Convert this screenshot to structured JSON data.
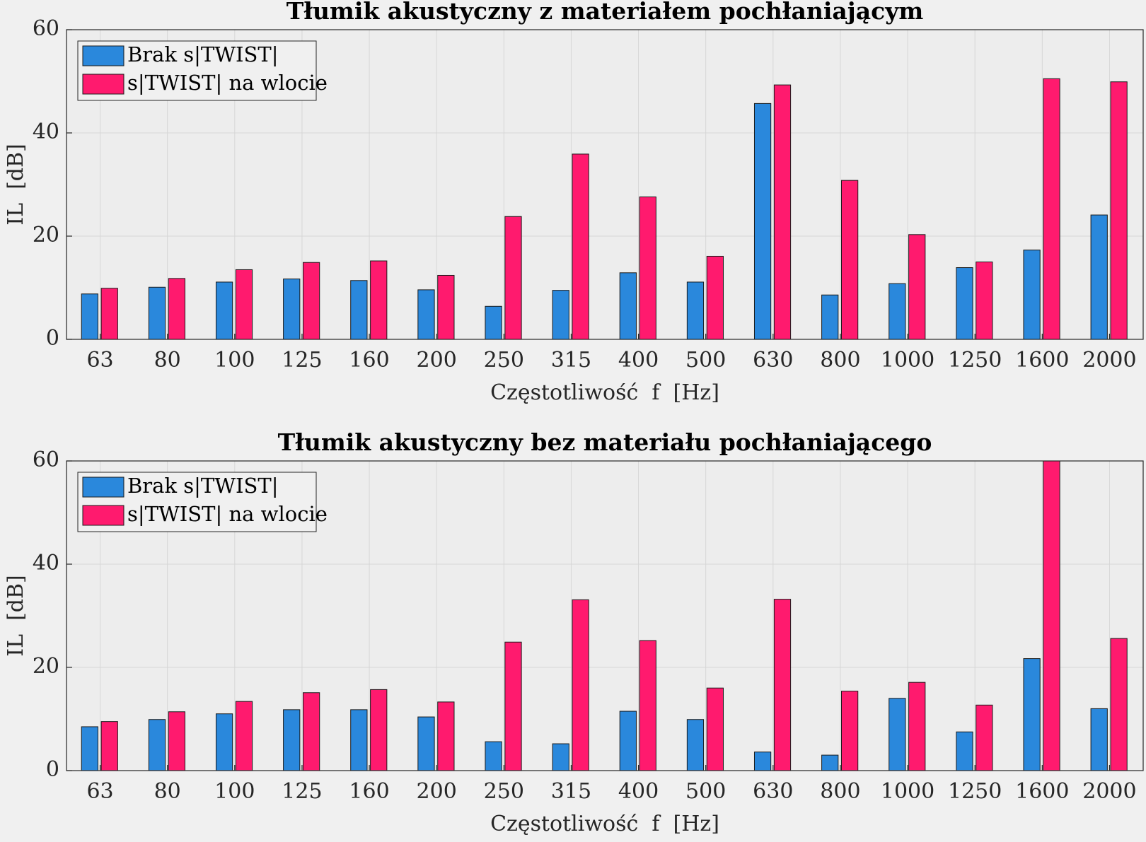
{
  "chart_data": [
    {
      "type": "bar",
      "title": "Tłumik akustyczny z materiałem pochłaniającym",
      "xlabel": "Częstotliwość  f  [Hz]",
      "ylabel": "IL  [dB]",
      "categories": [
        "63",
        "80",
        "100",
        "125",
        "160",
        "200",
        "250",
        "315",
        "400",
        "500",
        "630",
        "800",
        "1000",
        "1250",
        "1600",
        "2000"
      ],
      "series": [
        {
          "name": "Brak s|TWIST|",
          "color": "#2a88dc",
          "values": [
            8.8,
            10.1,
            11.1,
            11.7,
            11.4,
            9.6,
            6.4,
            9.5,
            12.9,
            11.1,
            45.7,
            8.6,
            10.8,
            13.9,
            17.3,
            24.1
          ]
        },
        {
          "name": "s|TWIST| na wlocie",
          "color": "#ff1a6e",
          "values": [
            9.9,
            11.8,
            13.5,
            14.9,
            15.2,
            12.4,
            23.8,
            35.9,
            27.6,
            16.1,
            49.3,
            30.8,
            20.3,
            15.0,
            50.5,
            49.9
          ]
        }
      ],
      "ylim": [
        0,
        60
      ],
      "yticks": [
        0,
        20,
        40,
        60
      ],
      "grid": true,
      "legend": "upper left"
    },
    {
      "type": "bar",
      "title": "Tłumik akustyczny bez materiału pochłaniającego",
      "xlabel": "Częstotliwość  f  [Hz]",
      "ylabel": "IL  [dB]",
      "categories": [
        "63",
        "80",
        "100",
        "125",
        "160",
        "200",
        "250",
        "315",
        "400",
        "500",
        "630",
        "800",
        "1000",
        "1250",
        "1600",
        "2000"
      ],
      "series": [
        {
          "name": "Brak s|TWIST|",
          "color": "#2a88dc",
          "values": [
            8.5,
            9.9,
            11.0,
            11.8,
            11.8,
            10.4,
            5.6,
            5.2,
            11.5,
            9.9,
            3.6,
            3.0,
            14.0,
            7.5,
            21.7,
            12.0
          ]
        },
        {
          "name": "s|TWIST| na wlocie",
          "color": "#ff1a6e",
          "values": [
            9.5,
            11.4,
            13.4,
            15.1,
            15.7,
            13.3,
            24.9,
            33.1,
            25.2,
            16.0,
            33.2,
            15.4,
            17.1,
            12.7,
            60,
            25.6
          ]
        }
      ],
      "ylim": [
        0,
        60
      ],
      "yticks": [
        0,
        20,
        40,
        60
      ],
      "grid": true,
      "legend": "upper left"
    }
  ]
}
